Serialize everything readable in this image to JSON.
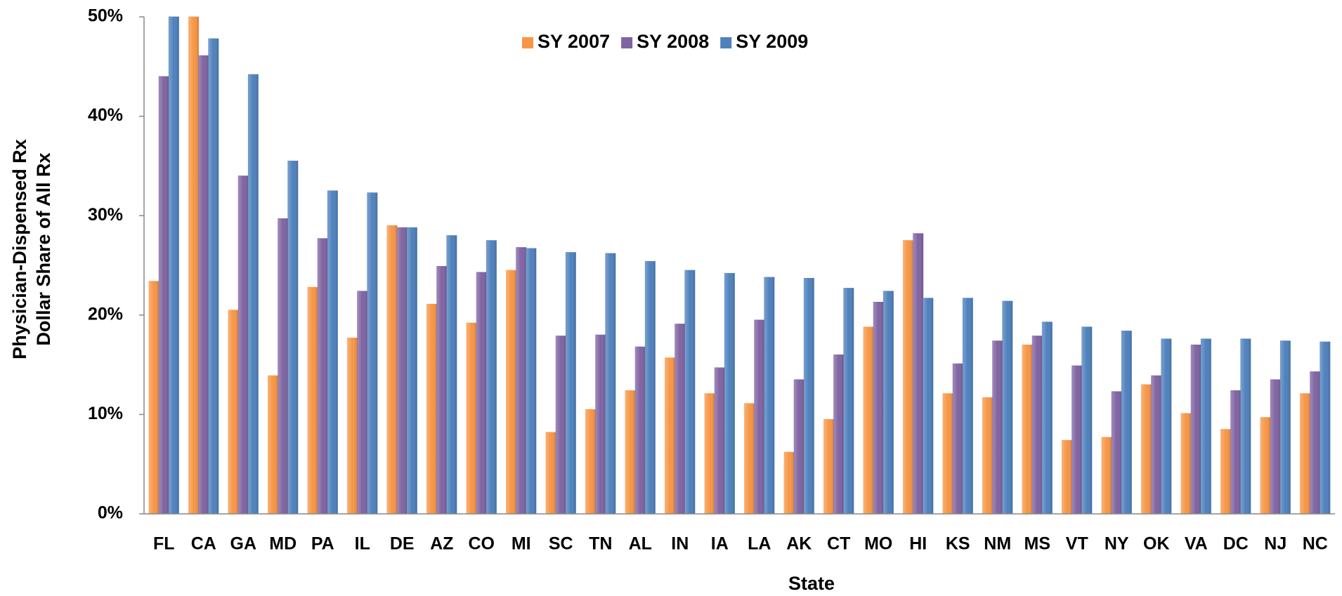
{
  "chart_data": {
    "type": "bar",
    "x_label": "State",
    "y_label": [
      "Physician-Dispensed Rx",
      "Dollar Share of All Rx"
    ],
    "categories": [
      "FL",
      "CA",
      "GA",
      "MD",
      "PA",
      "IL",
      "DE",
      "AZ",
      "CO",
      "MI",
      "SC",
      "TN",
      "AL",
      "IN",
      "IA",
      "LA",
      "AK",
      "CT",
      "MO",
      "HI",
      "KS",
      "NM",
      "MS",
      "VT",
      "NY",
      "OK",
      "VA",
      "DC",
      "NJ",
      "NC"
    ],
    "series": [
      {
        "name": "SY 2007",
        "color": "#f79646",
        "values": [
          23.4,
          50.0,
          20.5,
          13.9,
          22.8,
          17.7,
          29.0,
          21.1,
          19.2,
          24.5,
          8.2,
          10.5,
          12.4,
          15.7,
          12.1,
          11.1,
          6.2,
          9.5,
          18.8,
          27.5,
          12.1,
          11.7,
          17.0,
          7.4,
          7.7,
          13.0,
          10.1,
          8.5,
          9.7,
          12.1
        ]
      },
      {
        "name": "SY 2008",
        "color": "#8064a2",
        "values": [
          44.0,
          46.1,
          34.0,
          29.7,
          27.7,
          22.4,
          28.8,
          24.9,
          24.3,
          26.8,
          17.9,
          18.0,
          16.8,
          19.1,
          14.7,
          19.5,
          13.5,
          16.0,
          21.3,
          28.2,
          15.1,
          17.4,
          17.9,
          14.9,
          12.3,
          13.9,
          17.0,
          12.4,
          13.5,
          14.3
        ]
      },
      {
        "name": "SY 2009",
        "color": "#4f81bd",
        "values": [
          50.0,
          47.8,
          44.2,
          35.5,
          32.5,
          32.3,
          28.8,
          28.0,
          27.5,
          26.7,
          26.3,
          26.2,
          25.4,
          24.5,
          24.2,
          23.8,
          23.7,
          22.7,
          22.4,
          21.7,
          21.7,
          21.4,
          19.3,
          18.8,
          18.4,
          17.6,
          17.6,
          17.6,
          17.4,
          17.3
        ]
      }
    ],
    "ylim": [
      0,
      50
    ],
    "yticks": [
      {
        "value": 0,
        "label": "0%"
      },
      {
        "value": 10,
        "label": "10%"
      },
      {
        "value": 20,
        "label": "20%"
      },
      {
        "value": 30,
        "label": "30%"
      },
      {
        "value": 40,
        "label": "40%"
      },
      {
        "value": 50,
        "label": "50%"
      }
    ],
    "grid": false,
    "legend": "top"
  }
}
